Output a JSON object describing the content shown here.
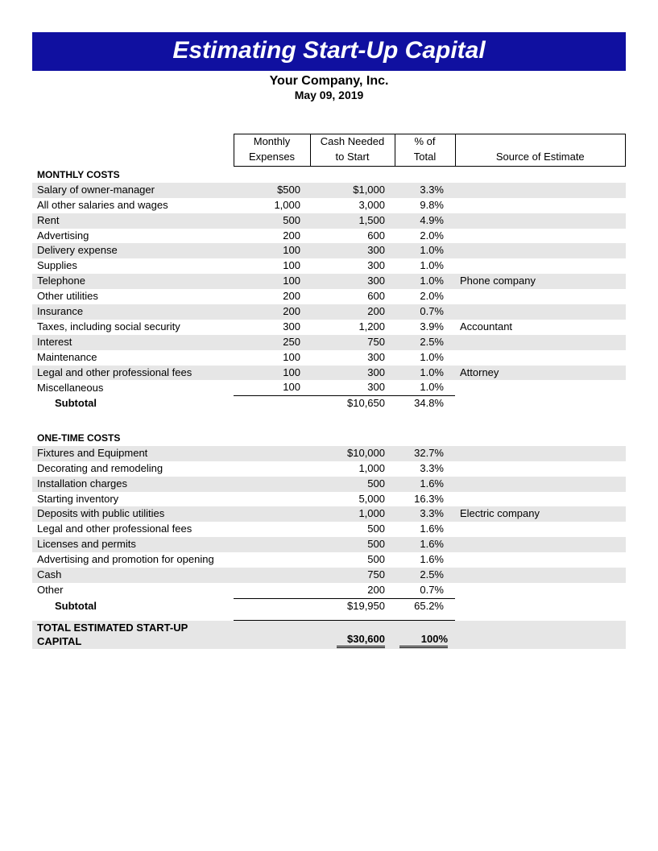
{
  "title": "Estimating Start-Up Capital",
  "company_name": "Your Company, Inc.",
  "date": "May 09, 2019",
  "columns": {
    "monthly1": "Monthly",
    "monthly2": "Expenses",
    "cash1": "Cash Needed",
    "cash2": "to Start",
    "pct1": "% of",
    "pct2": "Total",
    "source": "Source of Estimate"
  },
  "monthly": {
    "heading": "MONTHLY COSTS",
    "rows": [
      {
        "label": "Salary of owner-manager",
        "monthly": "$500",
        "cash": "$1,000",
        "pct": "3.3%",
        "source": ""
      },
      {
        "label": "All other salaries and wages",
        "monthly": "1,000",
        "cash": "3,000",
        "pct": "9.8%",
        "source": ""
      },
      {
        "label": "Rent",
        "monthly": "500",
        "cash": "1,500",
        "pct": "4.9%",
        "source": ""
      },
      {
        "label": "Advertising",
        "monthly": "200",
        "cash": "600",
        "pct": "2.0%",
        "source": ""
      },
      {
        "label": "Delivery expense",
        "monthly": "100",
        "cash": "300",
        "pct": "1.0%",
        "source": ""
      },
      {
        "label": "Supplies",
        "monthly": "100",
        "cash": "300",
        "pct": "1.0%",
        "source": ""
      },
      {
        "label": "Telephone",
        "monthly": "100",
        "cash": "300",
        "pct": "1.0%",
        "source": "Phone company"
      },
      {
        "label": "Other utilities",
        "monthly": "200",
        "cash": "600",
        "pct": "2.0%",
        "source": ""
      },
      {
        "label": "Insurance",
        "monthly": "200",
        "cash": "200",
        "pct": "0.7%",
        "source": ""
      },
      {
        "label": "Taxes, including social security",
        "monthly": "300",
        "cash": "1,200",
        "pct": "3.9%",
        "source": "Accountant"
      },
      {
        "label": "Interest",
        "monthly": "250",
        "cash": "750",
        "pct": "2.5%",
        "source": ""
      },
      {
        "label": "Maintenance",
        "monthly": "100",
        "cash": "300",
        "pct": "1.0%",
        "source": ""
      },
      {
        "label": "Legal and other professional fees",
        "monthly": "100",
        "cash": "300",
        "pct": "1.0%",
        "source": "Attorney"
      },
      {
        "label": "Miscellaneous",
        "monthly": "100",
        "cash": "300",
        "pct": "1.0%",
        "source": ""
      }
    ],
    "subtotal_label": "Subtotal",
    "subtotal_cash": "$10,650",
    "subtotal_pct": "34.8%"
  },
  "onetime": {
    "heading": "ONE-TIME COSTS",
    "rows": [
      {
        "label": "Fixtures and Equipment",
        "cash": "$10,000",
        "pct": "32.7%",
        "source": ""
      },
      {
        "label": "Decorating and remodeling",
        "cash": "1,000",
        "pct": "3.3%",
        "source": ""
      },
      {
        "label": "Installation charges",
        "cash": "500",
        "pct": "1.6%",
        "source": ""
      },
      {
        "label": "Starting inventory",
        "cash": "5,000",
        "pct": "16.3%",
        "source": ""
      },
      {
        "label": "Deposits with public utilities",
        "cash": "1,000",
        "pct": "3.3%",
        "source": "Electric company"
      },
      {
        "label": "Legal and other professional fees",
        "cash": "500",
        "pct": "1.6%",
        "source": ""
      },
      {
        "label": "Licenses and permits",
        "cash": "500",
        "pct": "1.6%",
        "source": ""
      },
      {
        "label": "Advertising and promotion for opening",
        "cash": "500",
        "pct": "1.6%",
        "source": ""
      },
      {
        "label": "Cash",
        "cash": "750",
        "pct": "2.5%",
        "source": ""
      },
      {
        "label": "Other",
        "cash": "200",
        "pct": "0.7%",
        "source": ""
      }
    ],
    "subtotal_label": "Subtotal",
    "subtotal_cash": "$19,950",
    "subtotal_pct": "65.2%"
  },
  "total": {
    "label": "TOTAL ESTIMATED START-UP CAPITAL",
    "cash": "$30,600",
    "pct": "100%"
  },
  "colors": {
    "banner_bg": "#1010a0",
    "banner_fg": "#ffffff",
    "zebra": "#e6e6e6",
    "border": "#000000",
    "text": "#000000"
  }
}
